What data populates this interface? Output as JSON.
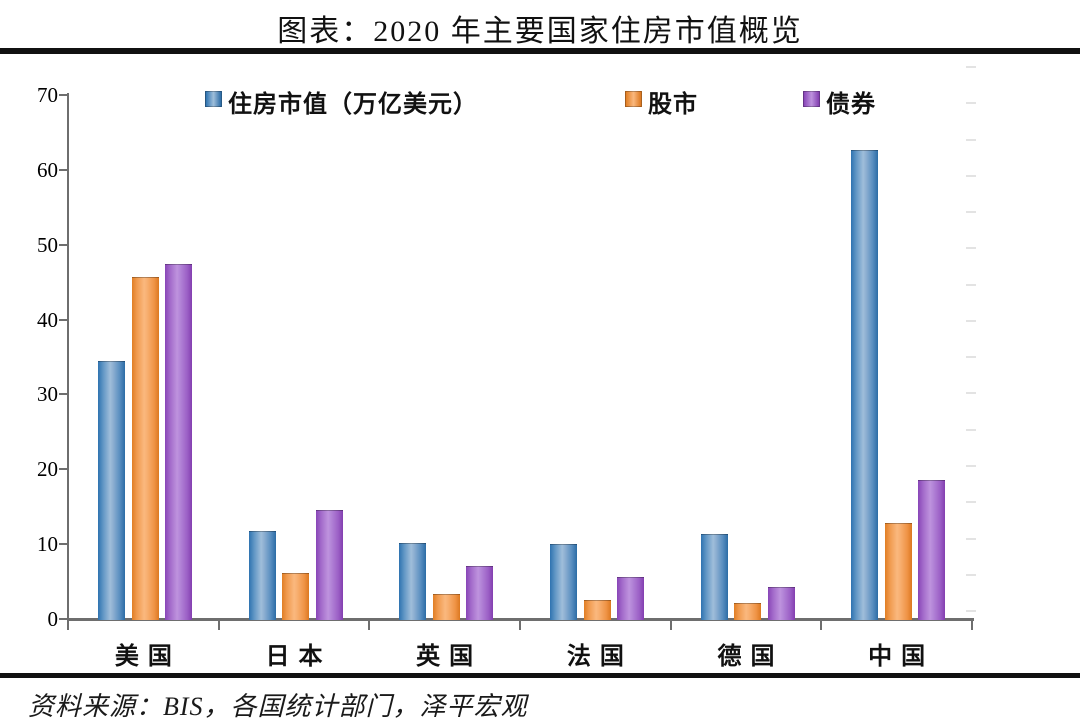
{
  "title": "图表：2020 年主要国家住房市值概览",
  "source": "资料来源：BIS，各国统计部门，泽平宏观",
  "colors": {
    "housing": "#4F81BD",
    "stocks": "#F79646",
    "bonds": "#9B59C3",
    "axis": "#6e6e6e",
    "rule": "#111111"
  },
  "chart_data": {
    "type": "bar",
    "title": "图表：2020 年主要国家住房市值概览",
    "categories": [
      "美国",
      "日本",
      "英国",
      "法国",
      "德国",
      "中国"
    ],
    "series": [
      {
        "name": "住房市值（万亿美元）",
        "color_key": "housing",
        "values": [
          34.4,
          11.8,
          10.1,
          10.0,
          11.4,
          62.6
        ]
      },
      {
        "name": "股市",
        "color_key": "stocks",
        "values": [
          45.7,
          6.1,
          3.4,
          2.6,
          2.2,
          12.8
        ]
      },
      {
        "name": "债券",
        "color_key": "bonds",
        "values": [
          47.4,
          14.6,
          7.1,
          5.6,
          4.3,
          18.6
        ]
      }
    ],
    "xlabel": "",
    "ylabel": "",
    "ylim": [
      0,
      70
    ],
    "yticks": [
      0,
      10,
      20,
      30,
      40,
      50,
      60,
      70
    ],
    "grid": false,
    "legend_position": "top-inside",
    "annotations": []
  }
}
